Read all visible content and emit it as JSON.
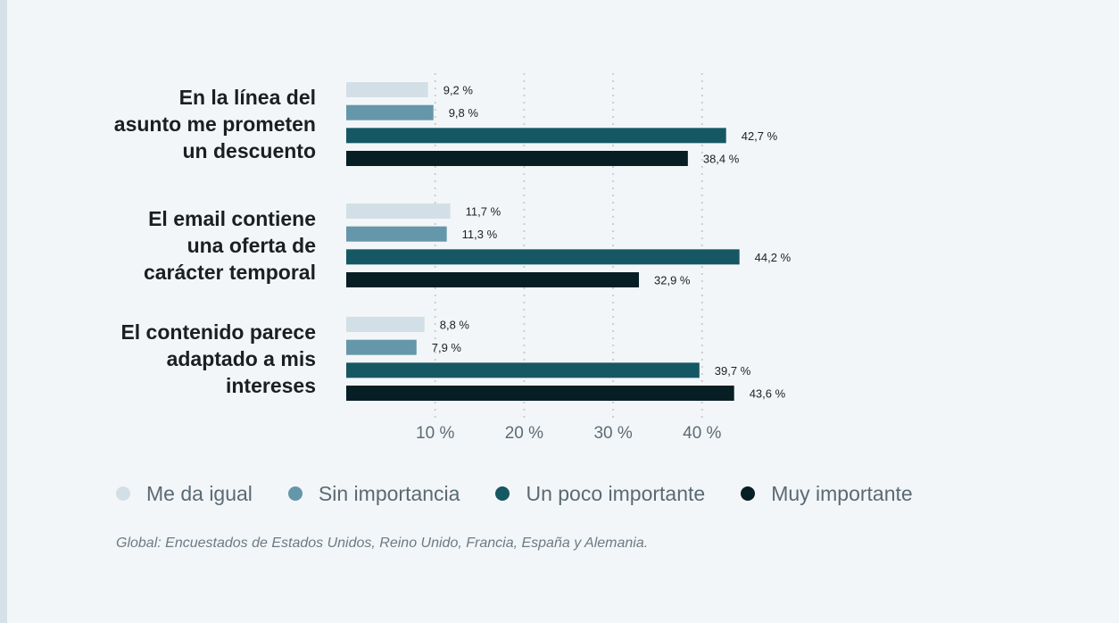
{
  "chart_data": {
    "type": "bar",
    "orientation": "horizontal",
    "categories": [
      [
        "En la línea del",
        "asunto me prometen",
        "un descuento"
      ],
      [
        "El email contiene",
        "una oferta de",
        "carácter temporal"
      ],
      [
        "El contenido parece",
        "adaptado a mis",
        "intereses"
      ]
    ],
    "series": [
      {
        "name": "Me da igual",
        "color": "#d3dfe7",
        "values": [
          9.2,
          11.7,
          8.8
        ],
        "labels": [
          "9,2 %",
          "11,7 %",
          "8,8 %"
        ]
      },
      {
        "name": "Sin importancia",
        "color": "#6497a9",
        "values": [
          9.8,
          11.3,
          7.9
        ],
        "labels": [
          "9,8 %",
          "11,3 %",
          "7,9 %"
        ]
      },
      {
        "name": "Un poco importante",
        "color": "#165764",
        "values": [
          42.7,
          44.2,
          39.7
        ],
        "labels": [
          "42,7 %",
          "44,2 %",
          "39,7 %"
        ]
      },
      {
        "name": "Muy importante",
        "color": "#071e25",
        "values": [
          38.4,
          32.9,
          43.6
        ],
        "labels": [
          "38,4 %",
          "32,9 %",
          "43,6 %"
        ]
      }
    ],
    "x_ticks": [
      10,
      20,
      30,
      40
    ],
    "x_tick_labels": [
      "10 %",
      "20 %",
      "30 %",
      "40 %"
    ],
    "xlim": [
      0,
      44.2
    ],
    "grid": "vertical dotted",
    "legend_position": "bottom"
  },
  "legend": [
    {
      "label": "Me da igual",
      "color": "#d3dfe7"
    },
    {
      "label": "Sin importancia",
      "color": "#6497a9"
    },
    {
      "label": "Un poco importante",
      "color": "#165764"
    },
    {
      "label": "Muy importante",
      "color": "#071e25"
    }
  ],
  "footnote": "Global: Encuestados de Estados Unidos, Reino Unido, Francia, España y Alemania."
}
